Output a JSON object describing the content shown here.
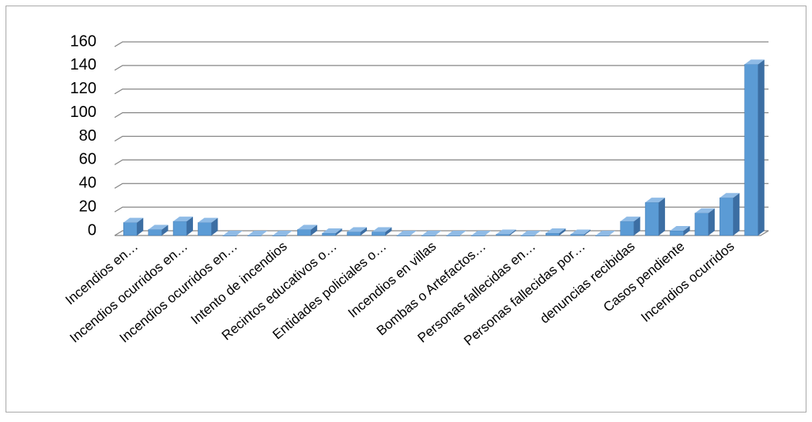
{
  "chart_data": {
    "type": "bar3d",
    "categories": [
      "Incendios en…",
      null,
      "Incendios ocurridos en…",
      null,
      "Incendios ocurridos en…",
      null,
      "Intento de incendios",
      null,
      "Recintos educativos o…",
      null,
      "Entidades policiales o…",
      null,
      "Incendios en villas",
      null,
      "Bombas o Artefactos…",
      null,
      "Personas fallecidas en…",
      null,
      "Personas fallecidas por…",
      null,
      "denuncias recibidas",
      null,
      "Casos pendiente",
      null,
      "Incendios ocurridos",
      null
    ],
    "values": [
      11,
      5,
      12,
      11,
      0,
      0,
      0,
      5,
      2,
      3,
      3,
      0,
      0,
      0,
      0,
      1,
      0,
      2,
      1,
      0,
      12,
      28,
      4,
      19,
      32,
      145
    ],
    "color": "#5b9bd5",
    "ylim": [
      0,
      160
    ],
    "yticks": [
      0,
      20,
      40,
      60,
      80,
      100,
      120,
      140,
      160
    ],
    "grid": true
  }
}
